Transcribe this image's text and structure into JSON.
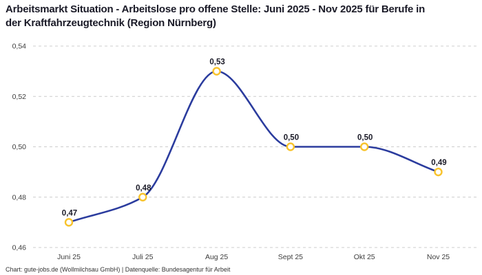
{
  "header": {
    "title": "Arbeitsmarkt Situation - Arbeitslose pro offene Stelle: Juni 2025 - Nov 2025 für Berufe in der Kraftfahrzeugtechnik (Region Nürnberg)"
  },
  "footer": {
    "credit": "Chart: gute-jobs.de (Wollmilchsau GmbH) | Datenquelle: Bundesagentur für Arbeit"
  },
  "chart_data": {
    "type": "line",
    "title": "Arbeitsmarkt Situation - Arbeitslose pro offene Stelle: Juni 2025 - Nov 2025 für Berufe in der Kraftfahrzeugtechnik (Region Nürnberg)",
    "categories": [
      "Juni 25",
      "Juli 25",
      "Aug 25",
      "Sept 25",
      "Okt 25",
      "Nov 25"
    ],
    "values": [
      0.47,
      0.48,
      0.53,
      0.5,
      0.5,
      0.49
    ],
    "point_labels": [
      "0,47",
      "0,48",
      "0,53",
      "0,50",
      "0,50",
      "0,49"
    ],
    "xlabel": "",
    "ylabel": "",
    "ylim": [
      0.46,
      0.54
    ],
    "y_ticks": [
      0.46,
      0.48,
      0.5,
      0.52,
      0.54
    ],
    "y_tick_labels": [
      "0,46",
      "0,48",
      "0,50",
      "0,52",
      "0,54"
    ],
    "grid": "horizontal-dashed",
    "legend": "none",
    "smooth": true,
    "colors": {
      "line": "#2B3C9E",
      "marker_ring": "#F8C32C",
      "marker_fill": "#FFFFFF",
      "gridline": "#CCCCCC",
      "title_text": "#1A1A27",
      "tick_text": "#3C3C3C"
    }
  }
}
